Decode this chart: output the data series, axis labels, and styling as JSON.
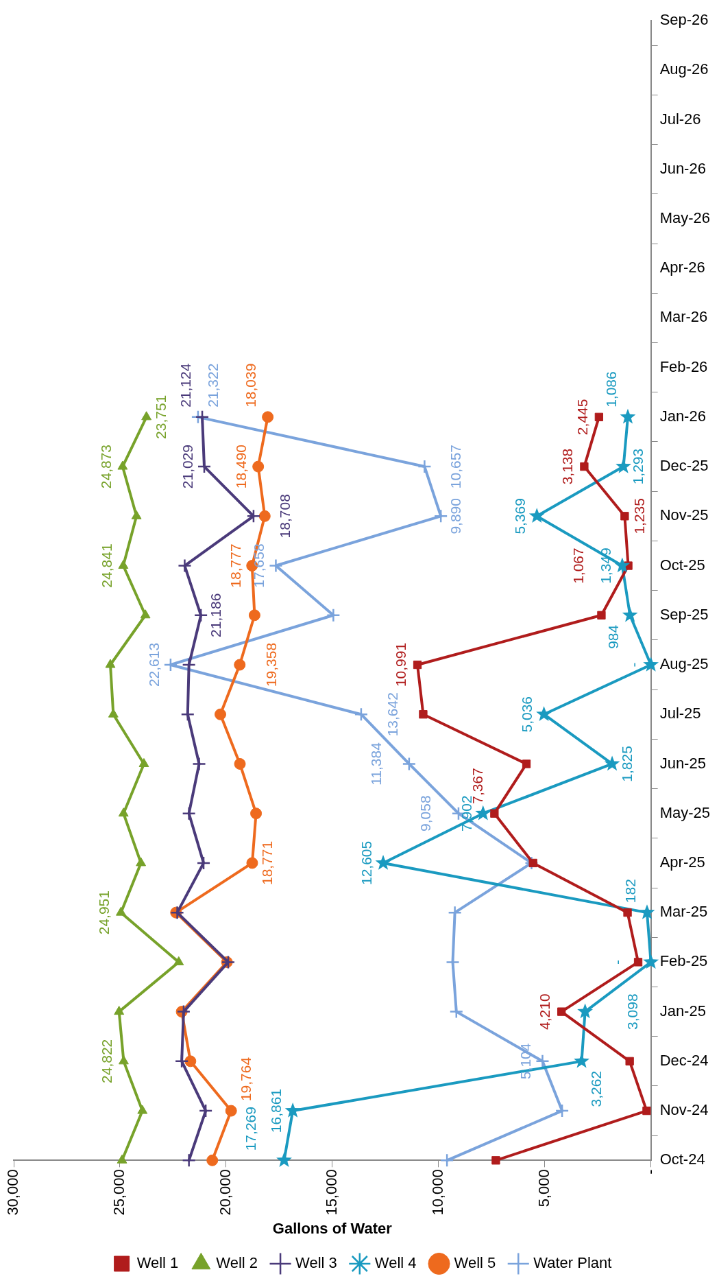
{
  "chart_data": {
    "type": "line",
    "orientation": "horizontal",
    "xlabel": "Gallons of Water",
    "categories": [
      "Sep-26",
      "Aug-26",
      "Jul-26",
      "Jun-26",
      "May-26",
      "Apr-26",
      "Mar-26",
      "Feb-26",
      "Jan-26",
      "Dec-25",
      "Nov-25",
      "Oct-25",
      "Sep-25",
      "Aug-25",
      "Jul-25",
      "Jun-25",
      "May-25",
      "Apr-25",
      "Mar-25",
      "Feb-25",
      "Jan-25",
      "Dec-24",
      "Nov-24",
      "Oct-24"
    ],
    "xlim": [
      30000,
      0
    ],
    "xticks": [
      {
        "value": 30000,
        "label": "30,000"
      },
      {
        "value": 25000,
        "label": "25,000"
      },
      {
        "value": 20000,
        "label": "20,000"
      },
      {
        "value": 15000,
        "label": "15,000"
      },
      {
        "value": 10000,
        "label": "10,000"
      },
      {
        "value": 5000,
        "label": "5,000"
      },
      {
        "value": 0,
        "label": "-"
      }
    ],
    "grid": false,
    "legend": "bottom",
    "line_style": "solid",
    "series": [
      {
        "name": "Well 1",
        "color": "#b01c1c",
        "marker": "square",
        "values": [
          null,
          null,
          null,
          null,
          null,
          null,
          null,
          null,
          2445,
          3138,
          1235,
          1067,
          2330,
          10991,
          10720,
          5860,
          7367,
          5550,
          1100,
          600,
          4210,
          1000,
          200,
          7300
        ],
        "value_labels": [
          null,
          null,
          null,
          null,
          null,
          null,
          null,
          null,
          "2,445",
          "3,138",
          "1,235",
          "1,067",
          null,
          "10,991",
          null,
          null,
          "7,367",
          null,
          null,
          null,
          "4,210",
          null,
          null,
          null
        ]
      },
      {
        "name": "Well 2",
        "color": "#77a22a",
        "marker": "triangle",
        "values": [
          null,
          null,
          null,
          null,
          null,
          null,
          null,
          null,
          23751,
          24873,
          24220,
          24841,
          23800,
          25450,
          25310,
          23870,
          24830,
          24010,
          24951,
          22230,
          25040,
          24822,
          23940,
          24900
        ],
        "value_labels": [
          null,
          null,
          null,
          null,
          null,
          null,
          null,
          null,
          "23,751",
          "24,873",
          null,
          "24,841",
          null,
          null,
          null,
          null,
          null,
          null,
          "24,951",
          null,
          null,
          "24,822",
          null,
          null
        ]
      },
      {
        "name": "Well 3",
        "color": "#4a3a7a",
        "marker": "cross",
        "values": [
          null,
          null,
          null,
          null,
          null,
          null,
          null,
          null,
          21124,
          21029,
          18708,
          21950,
          21186,
          21750,
          21810,
          21270,
          21750,
          21060,
          22300,
          19900,
          22000,
          22090,
          20960,
          21750
        ],
        "value_labels": [
          null,
          null,
          null,
          null,
          null,
          null,
          null,
          null,
          "21,124",
          "21,029",
          "18,708",
          null,
          "21,186",
          null,
          null,
          null,
          null,
          null,
          null,
          null,
          null,
          null,
          null,
          null
        ]
      },
      {
        "name": "Well 4",
        "color": "#1a9ac0",
        "marker": "star",
        "values": [
          null,
          null,
          null,
          null,
          null,
          null,
          null,
          null,
          1086,
          1293,
          5369,
          1349,
          984,
          0,
          5036,
          1825,
          7902,
          12605,
          182,
          0,
          3098,
          3262,
          16861,
          17269
        ],
        "value_labels": [
          null,
          null,
          null,
          null,
          null,
          null,
          null,
          null,
          "1,086",
          "1,293",
          "5,369",
          "1,349",
          "984",
          "-",
          "5,036",
          "1,825",
          "7,902",
          "12,605",
          "182",
          "-",
          "3,098",
          "3,262",
          "16,861",
          "17,269"
        ]
      },
      {
        "name": "Well 5",
        "color": "#ee6a1e",
        "marker": "circle",
        "values": [
          null,
          null,
          null,
          null,
          null,
          null,
          null,
          null,
          18039,
          18490,
          18180,
          18777,
          18660,
          19358,
          20270,
          19350,
          18590,
          18771,
          22360,
          19960,
          22090,
          21680,
          19764,
          20650
        ],
        "value_labels": [
          null,
          null,
          null,
          null,
          null,
          null,
          null,
          null,
          "18,039",
          "18,490",
          null,
          "18,777",
          null,
          "19,358",
          null,
          null,
          null,
          "18,771",
          null,
          null,
          null,
          null,
          "19,764",
          null
        ]
      },
      {
        "name": "Water Plant",
        "color": "#7aa3dc",
        "marker": "cross",
        "values": [
          null,
          null,
          null,
          null,
          null,
          null,
          null,
          null,
          21322,
          10657,
          9890,
          17658,
          14950,
          22613,
          13642,
          11384,
          9058,
          5620,
          9230,
          9330,
          9160,
          5104,
          4180,
          9600
        ],
        "value_labels": [
          null,
          null,
          null,
          null,
          null,
          null,
          null,
          null,
          "21,322",
          "10,657",
          "9,890",
          "17,658",
          null,
          "22,613",
          "13,642",
          "11,384",
          "9,058",
          null,
          null,
          null,
          null,
          "5,104",
          null,
          null
        ]
      }
    ]
  }
}
